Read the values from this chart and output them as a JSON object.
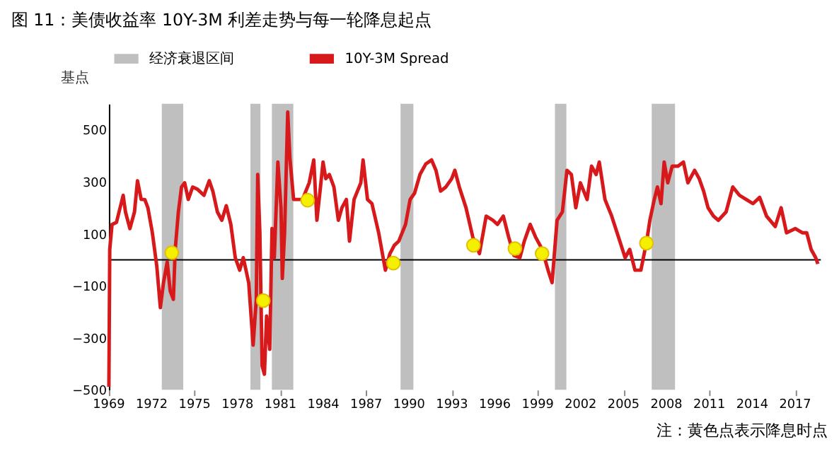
{
  "chart_data": {
    "type": "line",
    "title": "图 11：美债收益率 10Y-3M 利差走势与每一轮降息起点",
    "ylabel": "基点",
    "annotations": [
      "注：黄色点表示降息时点"
    ],
    "xlim": [
      1969,
      2018.8
    ],
    "xticks": [
      1969,
      1972,
      1975,
      1978,
      1981,
      1984,
      1987,
      1990,
      1993,
      1996,
      1999,
      2002,
      2005,
      2008,
      2011,
      2014,
      2017
    ],
    "ylim": [
      -500,
      600
    ],
    "yticks": [
      -500,
      -300,
      -100,
      100,
      300,
      500
    ],
    "grid": false,
    "legend": "top",
    "ref_lines": [
      {
        "axis": "y",
        "value": 0,
        "color": "#000000"
      }
    ],
    "bands": [
      {
        "axis": "x",
        "from": 1972.7,
        "to": 1974.2,
        "label": "经济衰退区间",
        "color": "#bfbfbf"
      },
      {
        "axis": "x",
        "from": 1978.9,
        "to": 1979.6,
        "color": "#bfbfbf"
      },
      {
        "axis": "x",
        "from": 1980.4,
        "to": 1981.9,
        "color": "#bfbfbf"
      },
      {
        "axis": "x",
        "from": 1989.4,
        "to": 1990.3,
        "color": "#bfbfbf"
      },
      {
        "axis": "x",
        "from": 2000.2,
        "to": 2001.0,
        "color": "#bfbfbf"
      },
      {
        "axis": "x",
        "from": 2006.97,
        "to": 2008.6,
        "color": "#bfbfbf"
      }
    ],
    "series": [
      {
        "name": "10Y-3M Spread",
        "marker": "none",
        "line_style": "solid",
        "color": "#d7191c",
        "x": [
          1969.0,
          1969.06,
          1969.22,
          1969.53,
          1970.0,
          1970.16,
          1970.47,
          1970.79,
          1971.0,
          1971.26,
          1971.51,
          1971.73,
          1972.04,
          1972.35,
          1972.6,
          1972.82,
          1973.08,
          1973.29,
          1973.51,
          1973.64,
          1973.86,
          1974.08,
          1974.3,
          1974.55,
          1974.86,
          1975.18,
          1975.65,
          1976.02,
          1976.27,
          1976.59,
          1976.9,
          1977.21,
          1977.53,
          1977.84,
          1978.15,
          1978.4,
          1978.78,
          1979.09,
          1979.31,
          1979.41,
          1979.56,
          1979.72,
          1979.88,
          1980.03,
          1980.25,
          1980.41,
          1980.57,
          1980.82,
          1981.04,
          1981.13,
          1981.29,
          1981.51,
          1981.66,
          1981.92,
          1982.54,
          1983.01,
          1983.33,
          1983.55,
          1983.8,
          1983.98,
          1984.17,
          1984.42,
          1984.74,
          1985.05,
          1985.3,
          1985.61,
          1985.83,
          1986.15,
          1986.62,
          1986.78,
          1987.09,
          1987.4,
          1987.87,
          1988.34,
          1988.66,
          1988.97,
          1989.28,
          1989.75,
          1990.07,
          1990.38,
          1990.76,
          1991.16,
          1991.57,
          1991.88,
          1992.2,
          1992.57,
          1992.98,
          1993.2,
          1993.51,
          1993.98,
          1994.45,
          1994.92,
          1995.39,
          1995.86,
          1996.18,
          1996.59,
          1996.96,
          1997.34,
          1997.75,
          1998.06,
          1998.47,
          1998.84,
          1999.31,
          1999.72,
          2000.0,
          2000.35,
          2000.72,
          2001.04,
          2001.35,
          2001.66,
          2001.98,
          2002.45,
          2002.76,
          2003.08,
          2003.3,
          2003.7,
          2004.17,
          2004.64,
          2005.11,
          2005.43,
          2005.8,
          2006.21,
          2006.62,
          2006.84,
          2007.15,
          2007.37,
          2007.62,
          2007.84,
          2008.09,
          2008.4,
          2008.81,
          2009.19,
          2009.5,
          2009.97,
          2010.29,
          2010.6,
          2010.91,
          2011.29,
          2011.63,
          2012.17,
          2012.64,
          2013.11,
          2013.58,
          2014.05,
          2014.52,
          2015.0,
          2015.61,
          2016.02,
          2016.4,
          2017.02,
          2017.5,
          2017.81,
          2018.12,
          2018.44,
          2018.59
        ],
        "values": [
          -488,
          40,
          136,
          144,
          248,
          184,
          120,
          184,
          304,
          232,
          232,
          200,
          104,
          -24,
          -184,
          -88,
          -8,
          -120,
          -152,
          40,
          184,
          280,
          296,
          232,
          280,
          272,
          248,
          304,
          264,
          184,
          152,
          208,
          136,
          8,
          -40,
          8,
          -88,
          -328,
          -152,
          328,
          104,
          -408,
          -440,
          -216,
          -344,
          120,
          8,
          376,
          200,
          -72,
          104,
          568,
          392,
          232,
          232,
          296,
          384,
          152,
          280,
          376,
          312,
          328,
          280,
          152,
          200,
          232,
          72,
          232,
          296,
          384,
          232,
          216,
          104,
          -40,
          24,
          56,
          72,
          136,
          232,
          256,
          328,
          368,
          384,
          344,
          264,
          280,
          312,
          344,
          280,
          200,
          88,
          24,
          168,
          152,
          136,
          168,
          88,
          16,
          8,
          72,
          136,
          88,
          40,
          -40,
          -88,
          152,
          184,
          344,
          328,
          200,
          296,
          232,
          360,
          328,
          376,
          232,
          168,
          88,
          8,
          40,
          -40,
          -40,
          72,
          152,
          232,
          280,
          216,
          376,
          296,
          360,
          360,
          376,
          296,
          344,
          312,
          264,
          200,
          168,
          152,
          184,
          280,
          248,
          232,
          216,
          240,
          168,
          128,
          200,
          104,
          120,
          104,
          104,
          40,
          8,
          -16
        ]
      },
      {
        "type": "scatter",
        "marker": "circle",
        "color": "#f5f000",
        "x": [
          1973.4,
          1979.8,
          1982.9,
          1988.9,
          1994.5,
          1997.4,
          1999.3,
          2006.6
        ],
        "values": [
          27,
          -157,
          229,
          -13,
          56,
          43,
          24,
          64
        ]
      }
    ]
  }
}
